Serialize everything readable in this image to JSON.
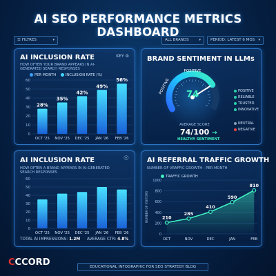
{
  "title": "AI SEO PERFORMANCE METRICS DASHBOARD",
  "filters": {
    "filters_label": "FILTRES",
    "brands_label": "ALL BRANDS",
    "period_label": "PERIOD: LATEST 6 MOS"
  },
  "panel1": {
    "title": "AI INCLUSION RATE",
    "key_label": "KEY",
    "subtitle": "HOW OFTEN YOUR BRAND APPEARS IN AI-GENERATED SEARCH RESPONSES",
    "legend": [
      "PER MONTH",
      "INCLUSION RATE (%)"
    ]
  },
  "panel2": {
    "title": "BRAND SENTIMENT IN LLMs",
    "gauge_value": "74",
    "gauge_level": 0.74,
    "label_positive_top": "POSITIVE",
    "label_positive_side": "POSITIVE",
    "average_label": "AVERAGE SCORE",
    "score": "74/100",
    "score_arrow": "→",
    "healthy": "HEALTHY SENTIMENT",
    "legend": [
      {
        "label": "POSITIVE",
        "color": "#2ad4a8"
      },
      {
        "label": "RELIABLE",
        "color": "#2ad4a8"
      },
      {
        "label": "TRUSTED",
        "color": "#2ad4a8"
      },
      {
        "label": "INNOVATIVE",
        "color": "#2ad4a8"
      },
      {
        "label": "NEUTRAL",
        "color": "#8aa0b8"
      },
      {
        "label": "NEGATIVE",
        "color": "#e84848"
      }
    ]
  },
  "panel3": {
    "title": "AI INCLUSION RATE",
    "subtitle": "HOW OFTEN A BRAND APPEARS IN AI-GENERATED SEARCH RESPONSES",
    "impressions_label": "TOTAL AI IMPRESSIONS:",
    "impressions_value": "1.2M",
    "ctr_label": "AVERAGE CTR:",
    "ctr_value": "4.8%"
  },
  "panel4": {
    "title": "AI REFERRAL TRAFFIC GROWTH",
    "subtitle": "NUMBER OF VRAFFIC GROWTH - PER MONTH",
    "legend": "TRAFFIC GROWTH",
    "ylabel": "NUMBER OF VISITORS"
  },
  "footer": "EDUCATIONAL INFOGRAPHIC FOR SEO STRATEGY BLOG",
  "logo": {
    "first": "C",
    "rest": "CCORD"
  },
  "chart_data": [
    {
      "type": "bar",
      "title": "AI INCLUSION RATE",
      "categories": [
        "OCT '25",
        "NOV '25",
        "DEC '25",
        "JAN '26",
        "FEB '26"
      ],
      "values": [
        28,
        35,
        42,
        49,
        56
      ],
      "data_labels": [
        "28%",
        "35%",
        "42%",
        "49%",
        "56%"
      ],
      "ylim": [
        0,
        60
      ],
      "yticks": [
        "0",
        "10",
        "20",
        "30",
        "40",
        "50",
        "60"
      ],
      "grid": true
    },
    {
      "type": "bar",
      "title": "AI INCLUSION RATE",
      "categories": [
        "OCT '25",
        "NOV '25",
        "DEC '25",
        "JAN '26",
        "FEB '26"
      ],
      "values": [
        35,
        42,
        44,
        50,
        47
      ],
      "ylim": [
        0,
        60
      ],
      "yticks": [
        "0",
        "10",
        "20",
        "30",
        "40",
        "50",
        "60"
      ],
      "grid": true
    },
    {
      "type": "line",
      "title": "AI REFERRAL TRAFFIC GROWTH",
      "categories": [
        "OCT",
        "NOV",
        "DEC",
        "JAN",
        "FEB"
      ],
      "values": [
        210,
        285,
        410,
        590,
        810
      ],
      "data_labels": [
        "210",
        "285",
        "410",
        "590",
        "810"
      ],
      "ylim": [
        0,
        1000
      ],
      "yticks": [
        "0",
        "200",
        "400",
        "600",
        "800",
        "1000"
      ],
      "ylabel": "NUMBER OF VISITORS",
      "grid": true
    }
  ]
}
